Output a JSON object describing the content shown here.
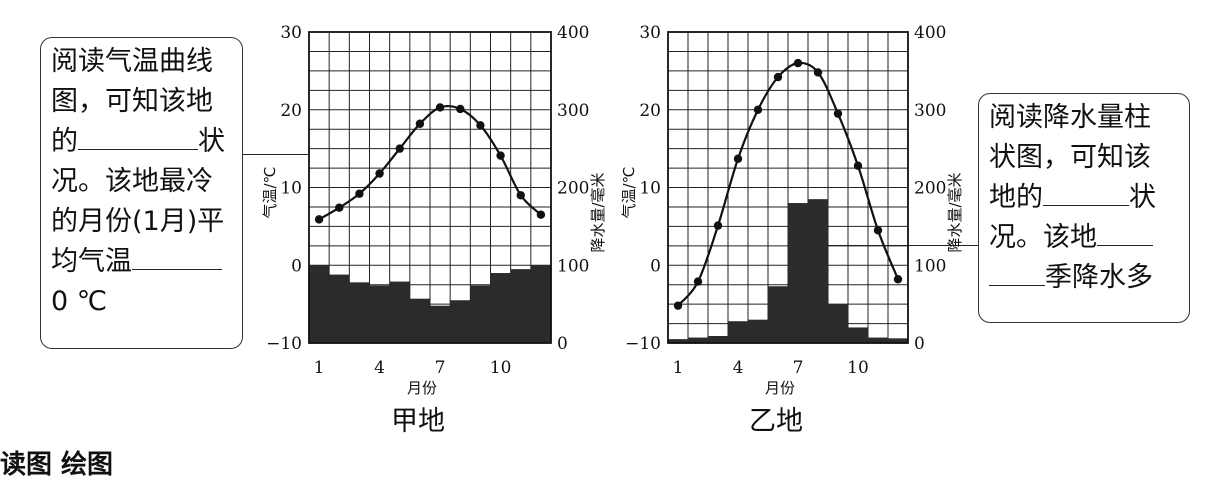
{
  "left_box": {
    "line1": "阅读气温曲线",
    "line2": "图，可知该地",
    "line3_pre": "的",
    "line3_post": "状",
    "line4": "况。该地最冷",
    "line5": "的月份(1月)平",
    "line6_pre": "均气温",
    "line7": "0 ℃"
  },
  "right_box": {
    "line1": "阅读降水量柱",
    "line2": "状图，可知该",
    "line3_pre": "地的",
    "line3_post": "状",
    "line4_pre": "况。该地",
    "line5_post": "季降水多"
  },
  "bottom_fragment": "读图 绘图",
  "colors": {
    "ink": "#111111",
    "bar": "#2b2b2b",
    "grid": "#222222"
  },
  "chart_data": [
    {
      "type": "bar+line",
      "title": "甲地",
      "xlabel": "月份",
      "ylabel_left": "气温/℃",
      "ylabel_right": "降水量/毫米",
      "x_ticks": [
        "1",
        "4",
        "7",
        "10"
      ],
      "y_left_ticks": [
        "30",
        "20",
        "10",
        "0",
        "−10"
      ],
      "y_right_ticks": [
        "400",
        "300",
        "200",
        "100",
        "0"
      ],
      "ylim_left": [
        -10,
        30
      ],
      "ylim_right": [
        0,
        400
      ],
      "grid": true,
      "months": [
        1,
        2,
        3,
        4,
        5,
        6,
        7,
        8,
        9,
        10,
        11,
        12
      ],
      "temperature": [
        5.9,
        7.4,
        9.2,
        11.8,
        15.0,
        18.2,
        20.3,
        20.1,
        18.0,
        14.1,
        9.0,
        6.5
      ],
      "precipitation": [
        100,
        88,
        78,
        74,
        79,
        57,
        48,
        55,
        74,
        90,
        95,
        100
      ]
    },
    {
      "type": "bar+line",
      "title": "乙地",
      "xlabel": "月份",
      "ylabel_left": "气温/℃",
      "ylabel_right": "降水量/毫米",
      "x_ticks": [
        "1",
        "4",
        "7",
        "10"
      ],
      "y_left_ticks": [
        "30",
        "20",
        "10",
        "0",
        "−10"
      ],
      "y_right_ticks": [
        "400",
        "300",
        "200",
        "100",
        "0"
      ],
      "ylim_left": [
        -10,
        30
      ],
      "ylim_right": [
        0,
        400
      ],
      "grid": true,
      "months": [
        1,
        2,
        3,
        4,
        5,
        6,
        7,
        8,
        9,
        10,
        11,
        12
      ],
      "temperature": [
        -5.2,
        -2.1,
        5.1,
        13.7,
        20.0,
        24.2,
        26.0,
        24.8,
        19.5,
        12.8,
        4.5,
        -1.8
      ],
      "precipitation": [
        5,
        7,
        9,
        28,
        30,
        73,
        180,
        185,
        50,
        20,
        7,
        6
      ]
    }
  ]
}
